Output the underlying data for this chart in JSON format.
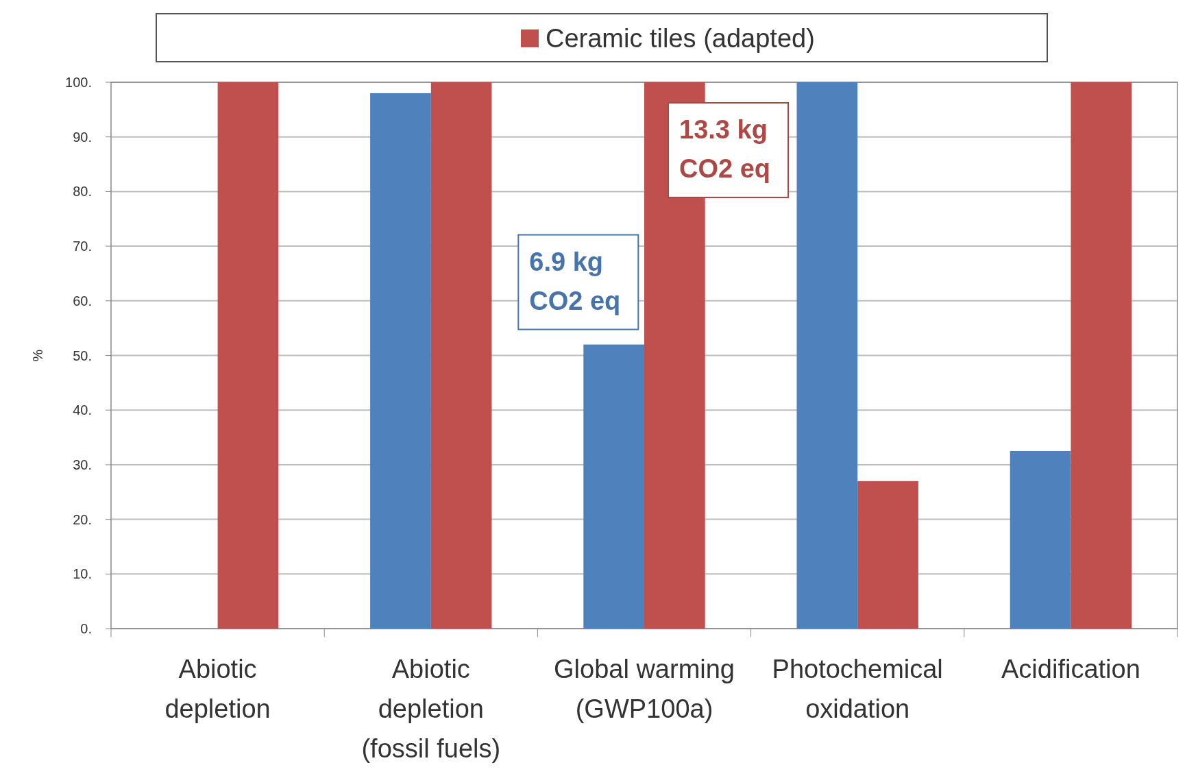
{
  "chart_data": {
    "type": "bar",
    "ylabel": "%",
    "categories": [
      "Abiotic depletion",
      "Abiotic depletion (fossil fuels)",
      "Global warming (GWP100a)",
      "Photochemical oxidation",
      "Acidification"
    ],
    "series": [
      {
        "color": "#4f81bd",
        "values": [
          null,
          98,
          52,
          100,
          32.5
        ]
      },
      {
        "name": "Ceramic tiles (adapted)",
        "color": "#c0504d",
        "values": [
          100,
          100,
          100,
          27,
          100
        ]
      }
    ],
    "ylim": [
      0,
      100
    ],
    "yticks": [
      {
        "value": 0,
        "label": "0."
      },
      {
        "value": 10,
        "label": "10."
      },
      {
        "value": 20,
        "label": "20."
      },
      {
        "value": 30,
        "label": "30."
      },
      {
        "value": 40,
        "label": "40."
      },
      {
        "value": 50,
        "label": "50."
      },
      {
        "value": 60,
        "label": "60."
      },
      {
        "value": 70,
        "label": "70."
      },
      {
        "value": 80,
        "label": "80."
      },
      {
        "value": 90,
        "label": "90."
      },
      {
        "value": 100,
        "label": "100."
      }
    ],
    "grid": "y",
    "legend": "top",
    "annotations": [
      {
        "text": "6.9 kg CO2 eq",
        "x": "Global warming (GWP100a)",
        "y": 52
      },
      {
        "text": "13.3 kg CO2 eq",
        "x": "Global warming (GWP100a)",
        "y": 100
      }
    ]
  }
}
